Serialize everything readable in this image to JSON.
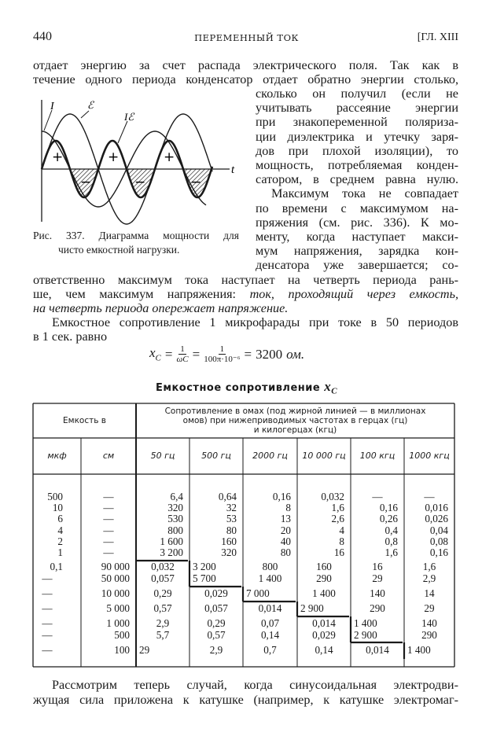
{
  "header": {
    "page_number": "440",
    "running_title": "ПЕРЕМЕННЫЙ ТОК",
    "chapter": "[ГЛ. XIII"
  },
  "body": {
    "p1_full": [
      "отдает энергию за счет распада электрического поля. Так как в",
      "течение одного периода конденсатор отдает обратно энергии столько,"
    ],
    "p1_right": [
      "сколько он получил (если не",
      "учитывать рассеяние энергии",
      "при знакопеременной поляриза-",
      "ции диэлектрика и утечку заря-",
      "дов при плохой изоляции), то",
      "мощность, потребляемая конден-",
      "сатором, в среднем равна нулю."
    ],
    "p2_right_first": "Максимум тока не совпадает",
    "p2_right": [
      "по времени с максимумом на-",
      "пряжения (см. рис. 336). К мо-",
      "менту, когда наступает макси-",
      "мум напряжения, зарядка кон-",
      "денсатора уже завершается; со-"
    ],
    "p2_full_1": "ответственно максимум тока наступает на четверть периода рань-",
    "p2_full_2_plain": "ше, чем максимум напряжения: ",
    "p2_full_2_italic": "ток, проходящий через емкость,",
    "p2_full_3_italic": "на четверть периода опережает напряжение.",
    "p3_line1": "Емкостное сопротивление 1 микрофарады при токе в 50 периодов",
    "p3_line2": "в 1 сек. равно",
    "formula": {
      "lhs": "x",
      "lhs_sub": "C",
      "eq": "=",
      "f1_num": "1",
      "f1_den": "ωC",
      "f2_num": "1",
      "f2_den": "100π·10⁻⁶",
      "result": "3200",
      "unit": "ом."
    },
    "last_lines": [
      "Рассмотрим теперь случай, когда синусоидальная электродви-",
      "жущая сила приложена к катушке (например, к катушке электромаг-"
    ]
  },
  "figure": {
    "labels": {
      "current": "I",
      "emf": "ℰ",
      "power": "Iℰ",
      "time": "t",
      "plus": "+",
      "minus": "−"
    },
    "caption_line1": "Рис. 337. Диаграмма мощности для",
    "caption_line2": "чисто емкостной нагрузки.",
    "colors": {
      "ink": "#1a1a1a"
    }
  },
  "table": {
    "title": "Емкостное сопротивление",
    "title_symbol": "x",
    "title_symbol_sub": "C",
    "capacity_header": "Емкость в",
    "resistance_header": [
      "Сопротивление в омах (под жирной линией — в миллионах",
      "омов) при нижеприводимых частотах в герцах (гц)",
      "и килогерцах (кгц)"
    ],
    "columns": [
      "мкф",
      "см",
      "50 гц",
      "500 гц",
      "2000 гц",
      "10 000 гц",
      "100 кгц",
      "1000 кгц"
    ],
    "rows": [
      [
        "500",
        "—",
        "6,4",
        "0,64",
        "0,16",
        "0,032",
        "—",
        "—"
      ],
      [
        "10",
        "—",
        "320",
        "32",
        "8",
        "1,6",
        "0,16",
        "0,016"
      ],
      [
        "6",
        "—",
        "530",
        "53",
        "13",
        "2,6",
        "0,26",
        "0,026"
      ],
      [
        "4",
        "—",
        "800",
        "80",
        "20",
        "4",
        "0,4",
        "0,04"
      ],
      [
        "2",
        "—",
        "1 600",
        "160",
        "40",
        "8",
        "0,8",
        "0,08"
      ],
      [
        "1",
        "—",
        "3 200",
        "320",
        "80",
        "16",
        "1,6",
        "0,16"
      ],
      [
        "0,1",
        "90 000",
        "0,032",
        "3 200",
        "800",
        "160",
        "16",
        "1,6"
      ],
      [
        "—",
        "50 000",
        "0,057",
        "5 700",
        "1 400",
        "290",
        "29",
        "2,9"
      ],
      [
        "—",
        "10 000",
        "0,29",
        "0,029",
        "7 000",
        "1 400",
        "140",
        "14"
      ],
      [
        "—",
        "5 000",
        "0,57",
        "0,057",
        "0,014",
        "2 900",
        "290",
        "29"
      ],
      [
        "—",
        "1 000",
        "2,9",
        "0,29",
        "0,07",
        "0,014",
        "1 400",
        "140"
      ],
      [
        "—",
        "500",
        "5,7",
        "0,57",
        "0,14",
        "0,029",
        "2 900",
        "290"
      ],
      [
        "—",
        "100",
        "29",
        "2,9",
        "0,7",
        "0,14",
        "0,014",
        "1 400"
      ]
    ]
  }
}
